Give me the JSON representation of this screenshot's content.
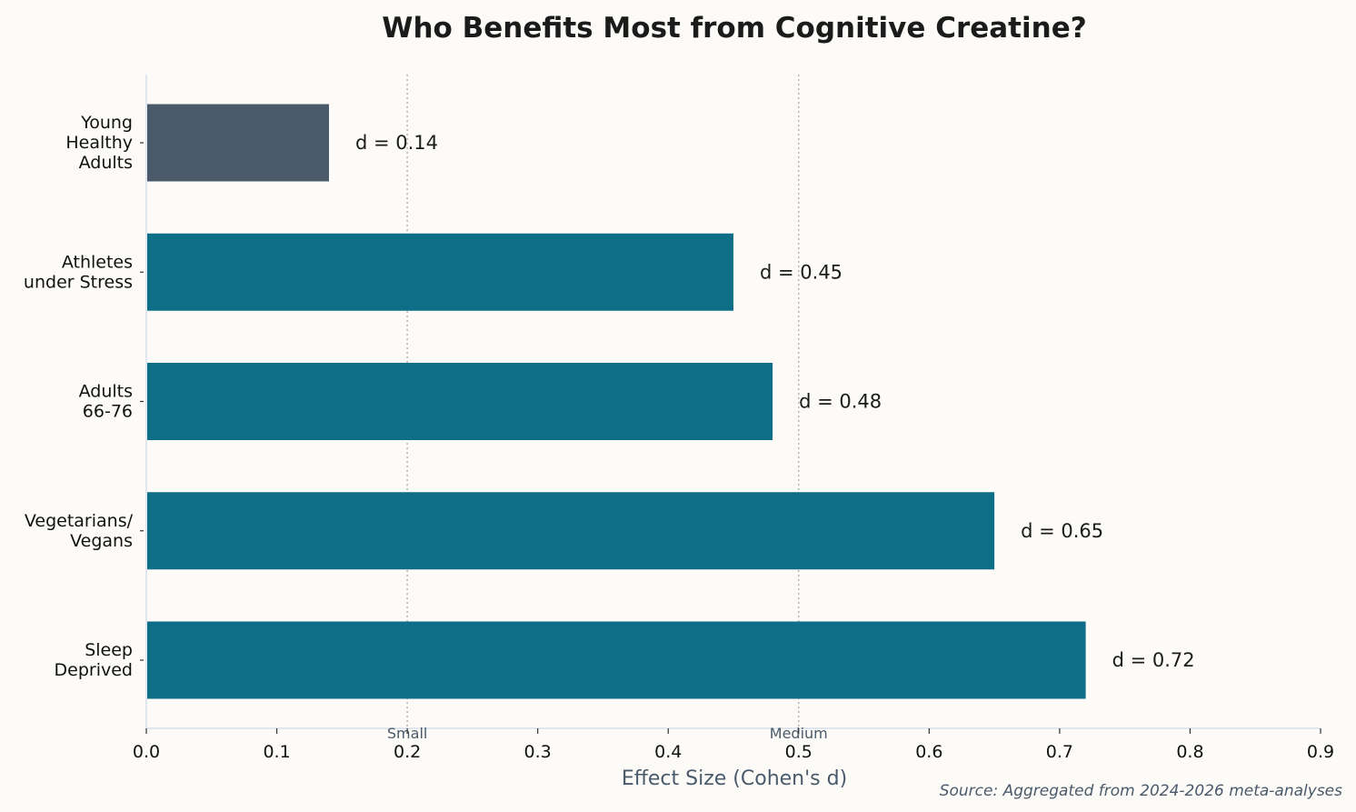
{
  "chart_data": {
    "type": "bar",
    "orientation": "horizontal",
    "title": "Who Benefits Most from Cognitive Creatine?",
    "xlabel": "Effect Size (Cohen's d)",
    "ylabel": "",
    "xlim": [
      0,
      0.9
    ],
    "xticks": [
      "0.0",
      "0.1",
      "0.2",
      "0.3",
      "0.4",
      "0.5",
      "0.6",
      "0.7",
      "0.8",
      "0.9"
    ],
    "categories": [
      [
        "Young",
        "Healthy",
        "Adults"
      ],
      [
        "Athletes",
        "under Stress"
      ],
      [
        "Adults",
        "66-76"
      ],
      [
        "Vegetarians/",
        "Vegans"
      ],
      [
        "Sleep",
        "Deprived"
      ]
    ],
    "values": [
      0.14,
      0.45,
      0.48,
      0.65,
      0.72
    ],
    "value_labels": [
      "d = 0.14",
      "d = 0.45",
      "d = 0.48",
      "d = 0.65",
      "d = 0.72"
    ],
    "bar_colors": [
      "#4a5a6a",
      "#0e6e88",
      "#0e6e88",
      "#0e6e88",
      "#0e6e88"
    ],
    "reference_lines": [
      {
        "value": 0.2,
        "label": "Small"
      },
      {
        "value": 0.5,
        "label": "Medium"
      }
    ],
    "grid": false,
    "source_note": "Source: Aggregated from 2024-2026 meta-analyses"
  }
}
